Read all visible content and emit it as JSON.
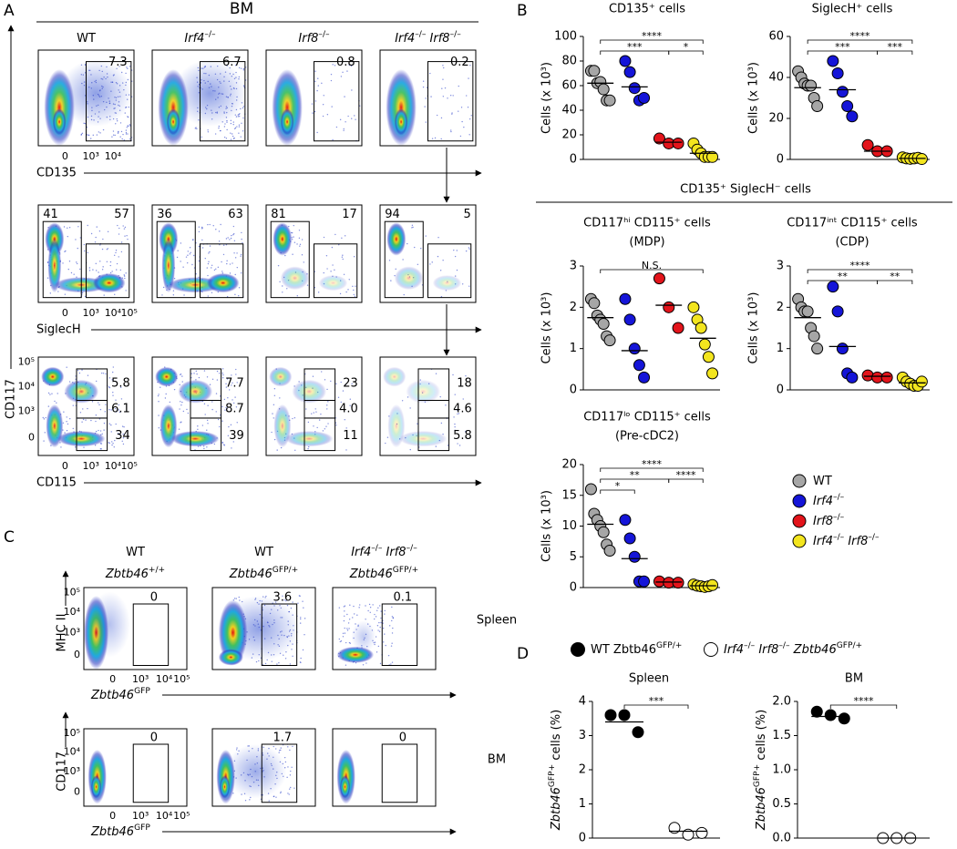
{
  "panel_labels": [
    "A",
    "B",
    "C",
    "D"
  ],
  "panel_a": {
    "title": "BM",
    "columns": [
      [
        "WT"
      ],
      [
        "Irf4",
        "–/–"
      ],
      [
        "Irf8",
        "–/–"
      ],
      [
        "Irf4",
        "–/–",
        " Irf8",
        "–/–"
      ]
    ],
    "y_label": "CD117",
    "rows": [
      {
        "x_label": "CD135",
        "x_ticks": [
          "0",
          "10³",
          "10⁴"
        ],
        "gates": [
          [
            "7.3"
          ],
          [
            "6.7"
          ],
          [
            "0.8"
          ],
          [
            "0.2"
          ]
        ]
      },
      {
        "x_label": "SiglecH",
        "x_ticks": [
          "0",
          "10³",
          "10⁴",
          "10⁵"
        ],
        "gates": [
          [
            "41",
            "57"
          ],
          [
            "36",
            "63"
          ],
          [
            "81",
            "17"
          ],
          [
            "94",
            "5"
          ]
        ]
      },
      {
        "x_label": "CD115",
        "x_ticks": [
          "0",
          "10³",
          "10⁴",
          "10⁵"
        ],
        "y_ticks": [
          "10⁵",
          "10⁴",
          "10³",
          "0"
        ],
        "gates": [
          [
            "5.8",
            "6.1",
            "34"
          ],
          [
            "7.7",
            "8.7",
            "39"
          ],
          [
            "23",
            "4.0",
            "11"
          ],
          [
            "18",
            "4.6",
            "5.8"
          ]
        ]
      }
    ]
  },
  "panel_b": {
    "header": "CD135⁺ SiglecH⁻ cells",
    "groups": [
      {
        "name": [
          "WT"
        ],
        "color": "#a6a6a6"
      },
      {
        "name": [
          "Irf4",
          "–/–"
        ],
        "color": "#1515d8"
      },
      {
        "name": [
          "Irf8",
          "–/–"
        ],
        "color": "#e3141b"
      },
      {
        "name": [
          "Irf4",
          "–/–",
          " Irf8",
          "–/–"
        ],
        "color": "#f3e51e"
      }
    ]
  },
  "panel_c": {
    "columns": [
      {
        "line1": [
          "WT"
        ],
        "line2": [
          "Zbtb46",
          "+/+"
        ]
      },
      {
        "line1": [
          "WT"
        ],
        "line2": [
          "Zbtb46",
          "GFP/+"
        ]
      },
      {
        "line1": [
          "Irf4",
          "–/–",
          " Irf8",
          "–/–"
        ],
        "line2": [
          "Zbtb46",
          "GFP/+"
        ]
      }
    ],
    "x_ticks": [
      "0",
      "10³",
      "10⁴",
      "10⁵"
    ],
    "y_ticks": [
      "10⁵",
      "10⁴",
      "10³",
      "0"
    ],
    "rows": [
      {
        "name": "Spleen",
        "y_label": "MHC II",
        "x_label": [
          "Zbtb46",
          "GFP"
        ],
        "gates": [
          "0",
          "3.6",
          "0.1"
        ]
      },
      {
        "name": "BM",
        "y_label": "CD117",
        "x_label": [
          "Zbtb46",
          "GFP"
        ],
        "gates": [
          "0",
          "1.7",
          "0"
        ]
      }
    ]
  },
  "panel_d": {
    "groups": [
      {
        "name": [
          "WT Zbtb46",
          "GFP/+"
        ],
        "color": "#000000"
      },
      {
        "name": [
          "Irf4",
          "–/–",
          " Irf8",
          "–/–",
          " Zbtb46",
          "GFP/+"
        ],
        "color": "#ffffff"
      }
    ]
  },
  "chart_data": [
    {
      "type": "scatter",
      "title": "CD135⁺ cells",
      "y_label": "Cells (x 10³)",
      "ylim": [
        0,
        100
      ],
      "yticks": [
        0,
        20,
        40,
        60,
        80,
        100
      ],
      "series": [
        {
          "color": "#a6a6a6",
          "values": [
            72,
            72,
            62,
            63,
            57,
            48,
            48
          ],
          "mean": 62
        },
        {
          "color": "#1515d8",
          "values": [
            80,
            71,
            58,
            48,
            50
          ],
          "mean": 59
        },
        {
          "color": "#e3141b",
          "values": [
            17,
            13,
            13
          ],
          "mean": 14
        },
        {
          "color": "#f3e51e",
          "values": [
            13,
            8,
            5,
            2,
            2,
            2
          ],
          "mean": 5
        }
      ],
      "brackets": [
        [
          {
            "span": [
              0,
              3
            ],
            "label": "****"
          }
        ],
        [
          {
            "span": [
              0,
              2
            ],
            "label": "***"
          },
          {
            "span": [
              2,
              3
            ],
            "label": "*"
          }
        ]
      ]
    },
    {
      "type": "scatter",
      "title": "SiglecH⁺ cells",
      "y_label": "Cells (x 10³)",
      "ylim": [
        0,
        60
      ],
      "yticks": [
        0,
        20,
        40,
        60
      ],
      "series": [
        {
          "color": "#a6a6a6",
          "values": [
            43,
            40,
            37,
            36,
            36,
            30,
            26
          ],
          "mean": 35
        },
        {
          "color": "#1515d8",
          "values": [
            48,
            42,
            33,
            26,
            21
          ],
          "mean": 34
        },
        {
          "color": "#e3141b",
          "values": [
            7,
            4,
            4
          ],
          "mean": 4
        },
        {
          "color": "#f3e51e",
          "values": [
            1,
            0.5,
            0.3,
            0.5,
            0.8,
            0.2
          ],
          "mean": 0.5
        }
      ],
      "brackets": [
        [
          {
            "span": [
              0,
              3
            ],
            "label": "****"
          }
        ],
        [
          {
            "span": [
              0,
              2
            ],
            "label": "***"
          },
          {
            "span": [
              2,
              3
            ],
            "label": "***"
          }
        ]
      ]
    },
    {
      "type": "scatter",
      "title": "CD117ʰⁱ CD115⁺ cells",
      "subtitle": "(MDP)",
      "y_label": "Cells (x 10³)",
      "ylim": [
        0,
        3
      ],
      "yticks": [
        0,
        1,
        2,
        3
      ],
      "series": [
        {
          "color": "#a6a6a6",
          "values": [
            2.2,
            2.1,
            1.8,
            1.7,
            1.6,
            1.3,
            1.2
          ],
          "mean": 1.75
        },
        {
          "color": "#1515d8",
          "values": [
            2.2,
            1.7,
            1.0,
            0.6,
            0.3
          ],
          "mean": 0.95
        },
        {
          "color": "#e3141b",
          "values": [
            2.7,
            2.0,
            1.5
          ],
          "mean": 2.05
        },
        {
          "color": "#f3e51e",
          "values": [
            2.0,
            1.7,
            1.5,
            1.1,
            0.8,
            0.4
          ],
          "mean": 1.25
        }
      ],
      "brackets": [
        [
          {
            "span": [
              0,
              3
            ],
            "label": "N.S."
          }
        ]
      ]
    },
    {
      "type": "scatter",
      "title": "CD117ⁱⁿᵗ CD115⁺ cells",
      "subtitle": "(CDP)",
      "y_label": "Cells (x 10³)",
      "ylim": [
        0,
        3
      ],
      "yticks": [
        0,
        1,
        2,
        3
      ],
      "series": [
        {
          "color": "#a6a6a6",
          "values": [
            2.2,
            2.0,
            1.9,
            1.9,
            1.5,
            1.3,
            1.0
          ],
          "mean": 1.75
        },
        {
          "color": "#1515d8",
          "values": [
            2.5,
            1.9,
            1.0,
            0.4,
            0.3
          ],
          "mean": 1.05
        },
        {
          "color": "#e3141b",
          "values": [
            0.35,
            0.3,
            0.3
          ],
          "mean": 0.33
        },
        {
          "color": "#f3e51e",
          "values": [
            0.3,
            0.2,
            0.15,
            0.1,
            0.1,
            0.2
          ],
          "mean": 0.17
        }
      ],
      "brackets": [
        [
          {
            "span": [
              0,
              3
            ],
            "label": "****"
          }
        ],
        [
          {
            "span": [
              0,
              2
            ],
            "label": "**"
          },
          {
            "span": [
              2,
              3
            ],
            "label": "**"
          }
        ]
      ]
    },
    {
      "type": "scatter",
      "title": "CD117ˡᵒ CD115⁺ cells",
      "subtitle": "(Pre-cDC2)",
      "y_label": "Cells (x 10³)",
      "ylim": [
        0,
        20
      ],
      "yticks": [
        0,
        5,
        10,
        15,
        20
      ],
      "series": [
        {
          "color": "#a6a6a6",
          "values": [
            16,
            12,
            11,
            10,
            9,
            7,
            6
          ],
          "mean": 10.3
        },
        {
          "color": "#1515d8",
          "values": [
            11,
            8,
            5,
            1,
            1
          ],
          "mean": 4.7
        },
        {
          "color": "#e3141b",
          "values": [
            1,
            0.8,
            0.8
          ],
          "mean": 0.9
        },
        {
          "color": "#f3e51e",
          "values": [
            0.5,
            0.3,
            0.2,
            0.1,
            0.2,
            0.4
          ],
          "mean": 0.3
        }
      ],
      "brackets": [
        [
          {
            "span": [
              0,
              3
            ],
            "label": "****"
          }
        ],
        [
          {
            "span": [
              0,
              2
            ],
            "label": "**"
          },
          {
            "span": [
              2,
              3
            ],
            "label": "****"
          }
        ],
        [
          {
            "span": [
              0,
              1
            ],
            "label": "*"
          }
        ]
      ]
    },
    {
      "type": "scatter",
      "title": "Spleen",
      "y_label": [
        "Zbtb46",
        "GFP+",
        " cells (%)"
      ],
      "ylim": [
        0,
        4
      ],
      "yticks": [
        0,
        1,
        2,
        3,
        4
      ],
      "series": [
        {
          "color": "#000000",
          "values": [
            3.6,
            3.6,
            3.1
          ],
          "mean": 3.4
        },
        {
          "color": "#ffffff",
          "values": [
            0.3,
            0.1,
            0.15
          ],
          "mean": 0.2
        }
      ],
      "brackets": [
        [
          {
            "span": [
              0,
              1
            ],
            "label": "***"
          }
        ]
      ]
    },
    {
      "type": "scatter",
      "title": "BM",
      "y_label": [
        "Zbtb46",
        "GFP+",
        " cells (%)"
      ],
      "ylim": [
        0,
        2
      ],
      "yticks": [
        {
          "value": 0,
          "label": "0.0"
        },
        {
          "value": 0.5,
          "label": "0.5"
        },
        {
          "value": 1,
          "label": "1.0"
        },
        {
          "value": 1.5,
          "label": "1.5"
        },
        {
          "value": 2,
          "label": "2.0"
        }
      ],
      "series": [
        {
          "color": "#000000",
          "values": [
            1.85,
            1.8,
            1.75
          ],
          "mean": 1.78
        },
        {
          "color": "#ffffff",
          "values": [
            0,
            0,
            0
          ],
          "mean": 0
        }
      ],
      "brackets": [
        [
          {
            "span": [
              0,
              1
            ],
            "label": "****"
          }
        ]
      ]
    }
  ]
}
